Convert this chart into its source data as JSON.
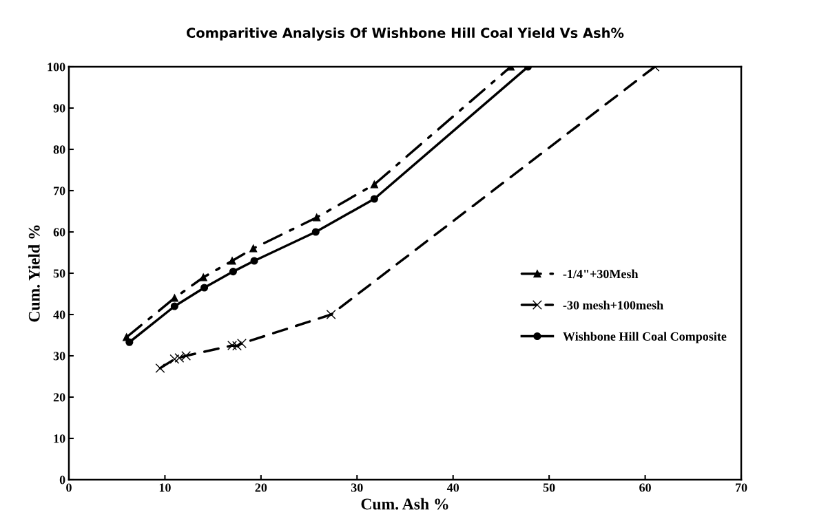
{
  "chart_data": {
    "type": "line",
    "title": "Comparitive Analysis Of Wishbone Hill Coal Yield Vs Ash%",
    "xlabel": "Cum. Ash %",
    "ylabel": "Cum. Yield %",
    "xlim": [
      0,
      70
    ],
    "xticks": [
      0,
      10,
      20,
      30,
      40,
      50,
      60,
      70
    ],
    "ylim": [
      0,
      100
    ],
    "yticks": [
      0,
      10,
      20,
      30,
      40,
      50,
      60,
      70,
      80,
      90,
      100
    ],
    "grid": false,
    "legend": "right",
    "series": [
      {
        "name": "-1/4\"+30Mesh",
        "color": "#000000",
        "marker": "triangle",
        "line_style": "dashdot",
        "x": [
          6,
          11,
          14,
          17,
          19.2,
          25.8,
          31.8,
          46
        ],
        "values": [
          34.5,
          44,
          49,
          53,
          56,
          63.5,
          71.5,
          100
        ]
      },
      {
        "name": "-30 mesh+100mesh",
        "color": "#000000",
        "marker": "cross",
        "line_style": "dashed",
        "x": [
          9.5,
          11,
          11.5,
          12.2,
          17,
          17.5,
          18,
          27.3,
          61
        ],
        "values": [
          27,
          29.2,
          29.5,
          30,
          32.5,
          32.4,
          33,
          40,
          100
        ]
      },
      {
        "name": "Wishbone Hill Coal Composite",
        "color": "#000000",
        "marker": "circle",
        "line_style": "solid",
        "x": [
          6.3,
          11,
          14.1,
          17.1,
          19.3,
          25.7,
          31.8,
          47.8
        ],
        "values": [
          33.3,
          42,
          46.5,
          50.4,
          53,
          60,
          68,
          100
        ]
      }
    ]
  }
}
